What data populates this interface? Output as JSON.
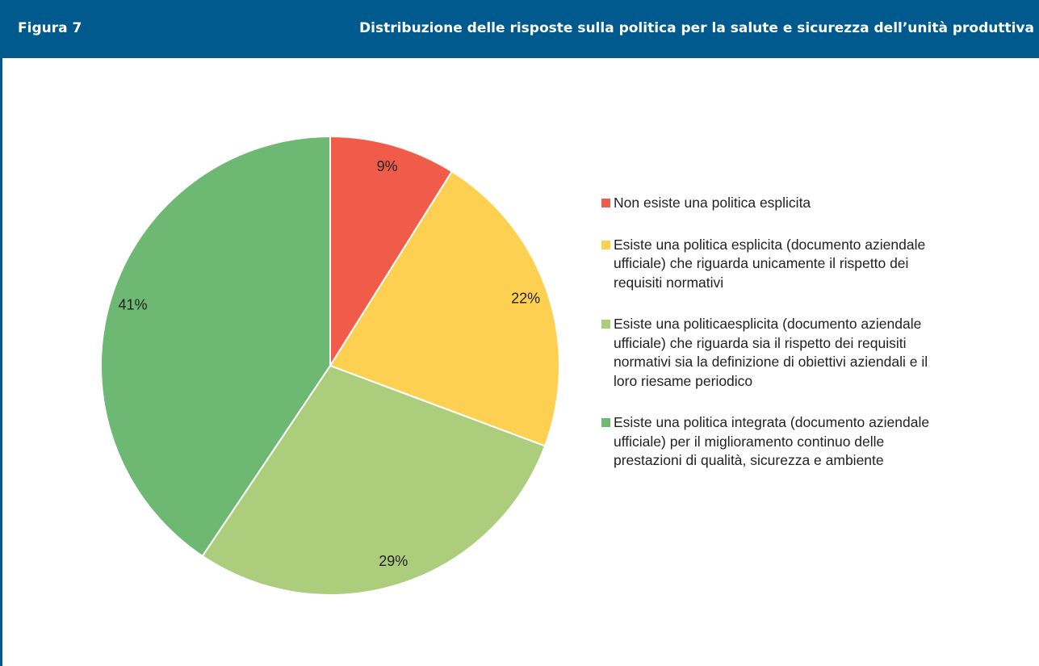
{
  "chart_data": {
    "type": "pie",
    "figure_label": "Figura 7",
    "title": "Distribuzione delle risposte sulla politica per la salute e sicurezza dell’unità produttiva",
    "categories": [
      "Non esiste una politica esplicita",
      "Esiste una politica esplicita (documento aziendale ufficiale) che riguarda unicamente il rispetto dei requisiti normativi",
      "Esiste una politicaesplicita (documento aziendale ufficiale) che riguarda sia il rispetto dei requisiti normativi sia la definizione di obiettivi aziendali e il loro riesame periodico",
      "Esiste una politica integrata (documento aziendale ufficiale) per il miglioramento continuo delle prestazioni di qualità, sicurezza e ambiente"
    ],
    "values": [
      9,
      22,
      29,
      41
    ],
    "value_labels": [
      "9%",
      "22%",
      "29%",
      "41%"
    ],
    "colors": [
      "#f15c4a",
      "#fdd052",
      "#accd7c",
      "#6db872"
    ],
    "legend": "right"
  }
}
